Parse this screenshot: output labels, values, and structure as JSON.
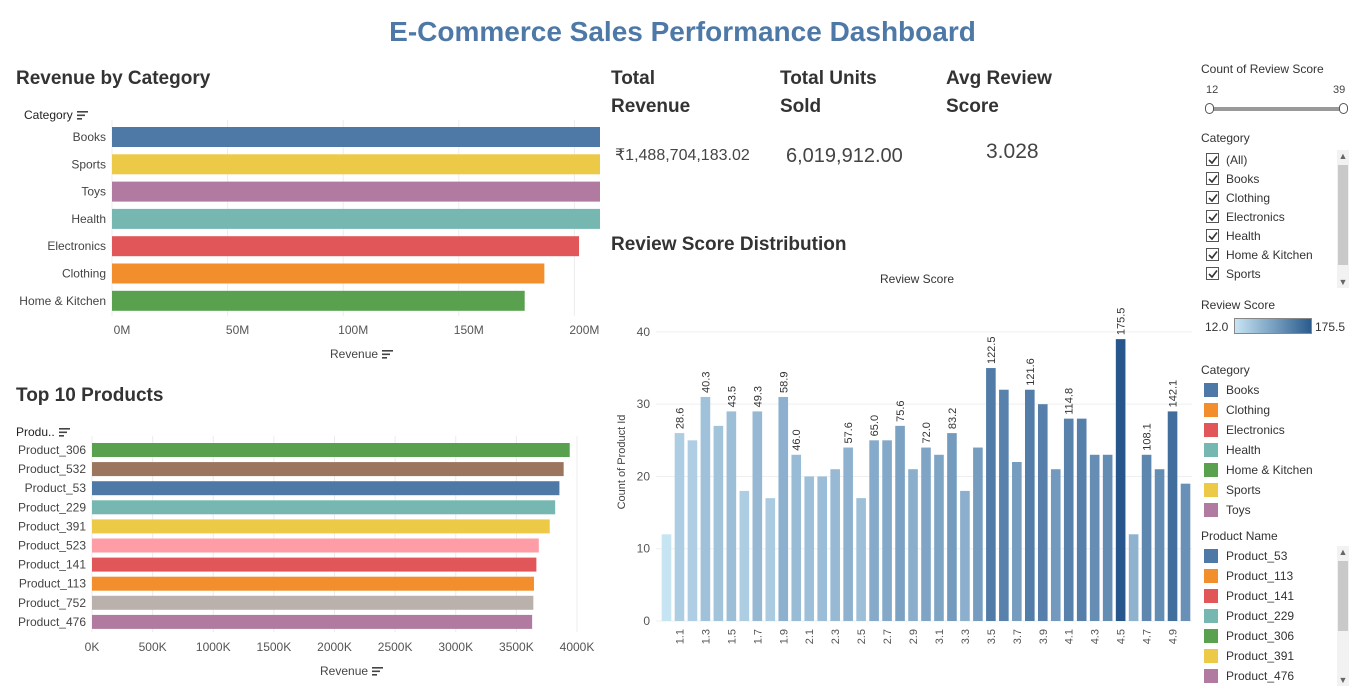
{
  "dashboard": {
    "title": "E-Commerce Sales Performance Dashboard"
  },
  "kpis": [
    {
      "label_line1": "Total",
      "label_line2": "Revenue",
      "value": "₹1,488,704,183.02"
    },
    {
      "label_line1": "Total Units",
      "label_line2": "Sold",
      "value": "6,019,912.00"
    },
    {
      "label_line1": "Avg Review",
      "label_line2": "Score",
      "value": "3.028"
    }
  ],
  "revenue_by_category": {
    "title": "Revenue by Category",
    "row_header": "Category",
    "axis_label": "Revenue"
  },
  "top10": {
    "title": "Top 10 Products",
    "row_header": "Produ..",
    "axis_label": "Revenue"
  },
  "review_dist": {
    "title": "Review Score Distribution",
    "chart_header": "Review Score",
    "y_axis_label": "Count of Product Id"
  },
  "filters": {
    "count_review": {
      "title": "Count of Review Score",
      "min": "12",
      "max": "39"
    },
    "category": {
      "title": "Category",
      "items": [
        "(All)",
        "Books",
        "Clothing",
        "Electronics",
        "Health",
        "Home & Kitchen",
        "Sports"
      ]
    },
    "review_score_legend": {
      "title": "Review Score",
      "min": "12.0",
      "max": "175.5"
    },
    "category_legend": {
      "title": "Category",
      "items": [
        {
          "label": "Books",
          "color": "#4e79a7"
        },
        {
          "label": "Clothing",
          "color": "#f28e2b"
        },
        {
          "label": "Electronics",
          "color": "#e15759"
        },
        {
          "label": "Health",
          "color": "#76b7b2"
        },
        {
          "label": "Home & Kitchen",
          "color": "#59a14f"
        },
        {
          "label": "Sports",
          "color": "#edc948"
        },
        {
          "label": "Toys",
          "color": "#b07aa1"
        }
      ]
    },
    "product_legend": {
      "title": "Product Name",
      "items": [
        {
          "label": "Product_53",
          "color": "#4e79a7"
        },
        {
          "label": "Product_113",
          "color": "#f28e2b"
        },
        {
          "label": "Product_141",
          "color": "#e15759"
        },
        {
          "label": "Product_229",
          "color": "#76b7b2"
        },
        {
          "label": "Product_306",
          "color": "#59a14f"
        },
        {
          "label": "Product_391",
          "color": "#edc948"
        },
        {
          "label": "Product_476",
          "color": "#b07aa1"
        }
      ]
    }
  },
  "chart_data": [
    {
      "type": "bar",
      "orientation": "horizontal",
      "categories": [
        "Books",
        "Sports",
        "Toys",
        "Health",
        "Electronics",
        "Clothing",
        "Home & Kitchen"
      ],
      "values": [
        238000000,
        233500000,
        230500000,
        221500000,
        202000000,
        187000000,
        178500000
      ],
      "colors": [
        "#4e79a7",
        "#edc948",
        "#b07aa1",
        "#76b7b2",
        "#e15759",
        "#f28e2b",
        "#59a14f"
      ],
      "xticks": [
        "0M",
        "50M",
        "100M",
        "150M",
        "200M"
      ],
      "xtick_values": [
        0,
        50000000,
        100000000,
        150000000,
        200000000
      ],
      "xlim": [
        0,
        250000000
      ]
    },
    {
      "type": "bar",
      "orientation": "horizontal",
      "categories": [
        "Product_306",
        "Product_532",
        "Product_53",
        "Product_229",
        "Product_391",
        "Product_523",
        "Product_141",
        "Product_113",
        "Product_752",
        "Product_476"
      ],
      "values": [
        3940000,
        3890000,
        3855000,
        3820000,
        3775000,
        3685000,
        3665000,
        3645000,
        3640000,
        3630000
      ],
      "colors": [
        "#59a14f",
        "#9c755f",
        "#4e79a7",
        "#76b7b2",
        "#edc948",
        "#ff9da7",
        "#e15759",
        "#f28e2b",
        "#bab0ac",
        "#b07aa1"
      ],
      "xticks": [
        "0K",
        "500K",
        "1000K",
        "1500K",
        "2000K",
        "2500K",
        "3000K",
        "3500K",
        "4000K"
      ],
      "xtick_values": [
        0,
        500000,
        1000000,
        1500000,
        2000000,
        2500000,
        3000000,
        3500000,
        4000000
      ],
      "xlim": [
        0,
        4000000
      ]
    },
    {
      "type": "bar",
      "orientation": "vertical",
      "x": [
        1.0,
        1.1,
        1.2,
        1.3,
        1.4,
        1.5,
        1.6,
        1.7,
        1.8,
        1.9,
        2.0,
        2.1,
        2.2,
        2.3,
        2.4,
        2.5,
        2.6,
        2.7,
        2.8,
        2.9,
        3.0,
        3.1,
        3.2,
        3.3,
        3.4,
        3.5,
        3.6,
        3.7,
        3.8,
        3.9,
        4.0,
        4.1,
        4.2,
        4.3,
        4.4,
        4.5,
        4.6,
        4.7,
        4.8,
        4.9,
        5.0
      ],
      "values": [
        12,
        26,
        25,
        31,
        27,
        29,
        18,
        29,
        17,
        31,
        23,
        20,
        20,
        21,
        24,
        17,
        25,
        25,
        27,
        21,
        24,
        23,
        26,
        18,
        24,
        35,
        32,
        22,
        32,
        30,
        21,
        28,
        28,
        23,
        23,
        39,
        12,
        23,
        21,
        29,
        19
      ],
      "color_values": [
        12,
        28.6,
        27.5,
        40.3,
        37.8,
        43.5,
        28.8,
        49.3,
        30.6,
        58.9,
        46.0,
        42.0,
        44.0,
        48.3,
        57.6,
        42.5,
        65.0,
        67.5,
        75.6,
        60.9,
        72.0,
        71.3,
        83.2,
        59.4,
        81.6,
        122.5,
        115.2,
        81.4,
        121.6,
        117.0,
        84.0,
        114.8,
        117.6,
        98.9,
        101.2,
        175.5,
        55.2,
        108.1,
        100.8,
        142.1,
        95.0
      ],
      "data_labels": {
        "1.1": "28.6",
        "1.3": "40.3",
        "1.5": "43.5",
        "1.7": "49.3",
        "1.9": "58.9",
        "2.0": "46.0",
        "2.4": "57.6",
        "2.6": "65.0",
        "2.8": "75.6",
        "3.0": "72.0",
        "3.2": "83.2",
        "3.5": "122.5",
        "3.8": "121.6",
        "4.1": "114.8",
        "4.5": "175.5",
        "4.7": "108.1",
        "4.9": "142.1"
      },
      "xticks": [
        "1.1",
        "1.3",
        "1.5",
        "1.7",
        "1.9",
        "2.1",
        "2.3",
        "2.5",
        "2.7",
        "2.9",
        "3.1",
        "3.3",
        "3.5",
        "3.7",
        "3.9",
        "4.1",
        "4.3",
        "4.5",
        "4.7",
        "4.9"
      ],
      "yticks": [
        0,
        10,
        20,
        30,
        40
      ],
      "ylim": [
        0,
        44
      ],
      "color_range": [
        12.0,
        175.5
      ]
    }
  ]
}
